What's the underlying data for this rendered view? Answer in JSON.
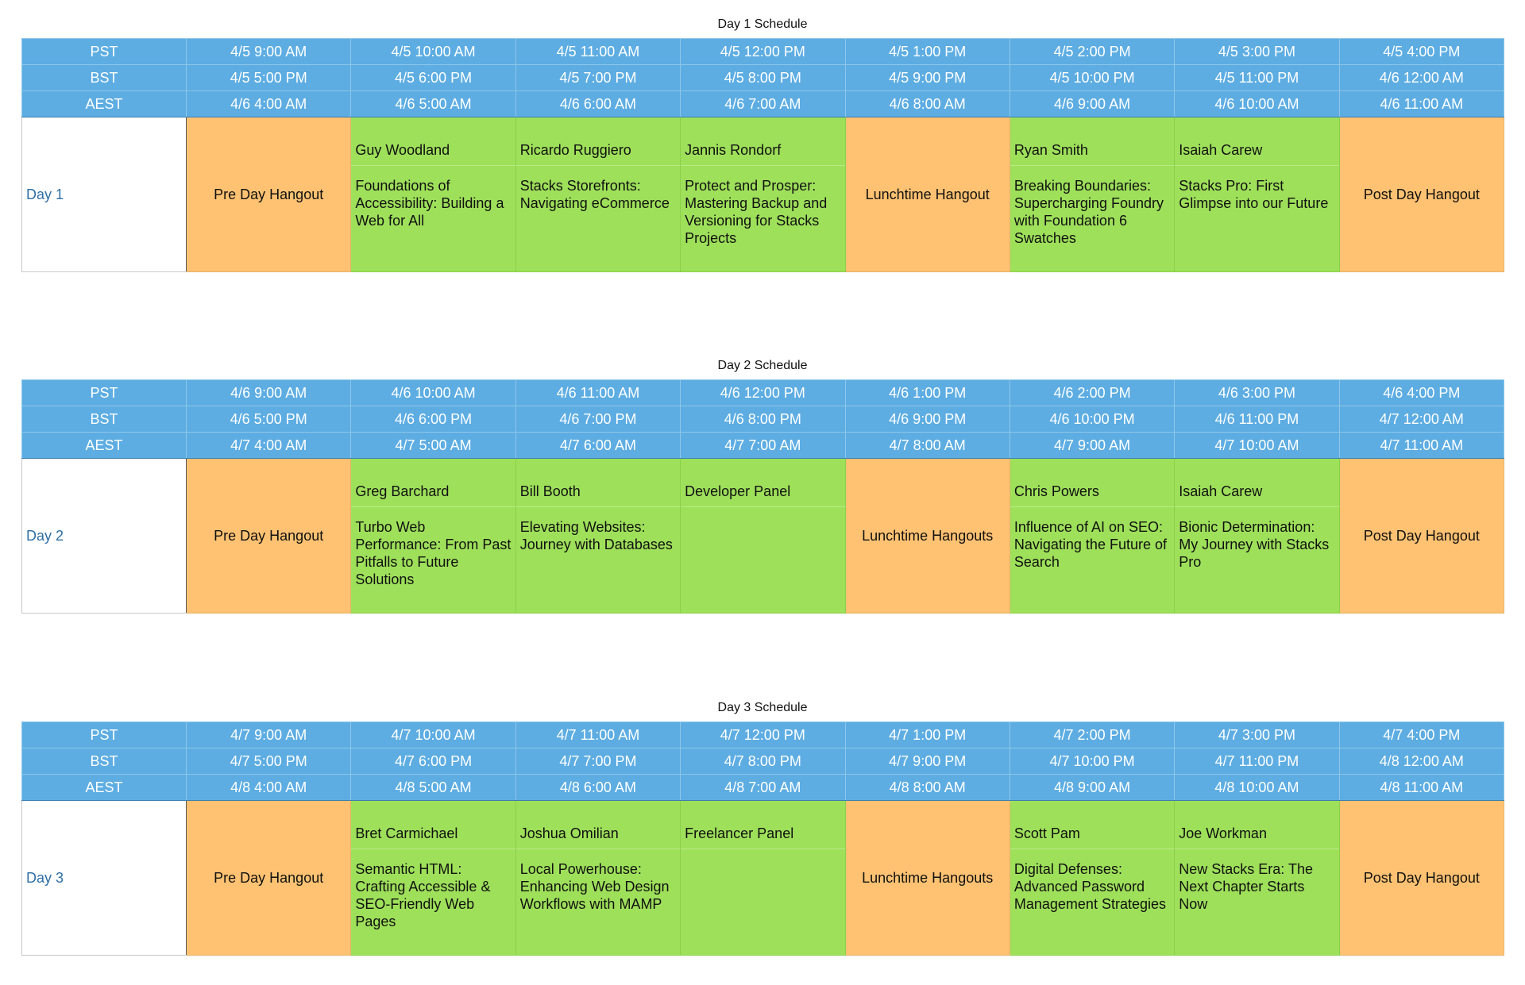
{
  "days": [
    {
      "title": "Day 1 Schedule",
      "timezones": [
        {
          "label": "PST",
          "times": [
            "4/5 9:00 AM",
            "4/5 10:00 AM",
            "4/5 11:00 AM",
            "4/5 12:00 PM",
            "4/5 1:00 PM",
            "4/5 2:00 PM",
            "4/5 3:00 PM",
            "4/5 4:00 PM"
          ]
        },
        {
          "label": "BST",
          "times": [
            "4/5 5:00 PM",
            "4/5 6:00 PM",
            "4/5 7:00 PM",
            "4/5 8:00 PM",
            "4/5 9:00 PM",
            "4/5 10:00 PM",
            "4/5 11:00 PM",
            "4/6 12:00 AM"
          ]
        },
        {
          "label": "AEST",
          "times": [
            "4/6 4:00 AM",
            "4/6 5:00 AM",
            "4/6 6:00 AM",
            "4/6 7:00 AM",
            "4/6 8:00 AM",
            "4/6 9:00 AM",
            "4/6 10:00 AM",
            "4/6 11:00 AM"
          ]
        }
      ],
      "day_label": "Day 1",
      "slots": [
        {
          "type": "hangout",
          "text": "Pre Day Hangout"
        },
        {
          "type": "talk",
          "speaker": "Guy Woodland",
          "session": "Foundations of Accessibility: Building a Web for All"
        },
        {
          "type": "talk",
          "speaker": "Ricardo Ruggiero",
          "session": "Stacks Storefronts: Navigating eCommerce"
        },
        {
          "type": "talk",
          "speaker": "Jannis Rondorf",
          "session": "Protect and Prosper: Mastering Backup and Versioning for Stacks Projects"
        },
        {
          "type": "hangout",
          "text": "Lunchtime Hangout"
        },
        {
          "type": "talk",
          "speaker": "Ryan Smith",
          "session": "Breaking Boundaries: Supercharging Foundry with Foundation 6 Swatches"
        },
        {
          "type": "talk",
          "speaker": "Isaiah Carew",
          "session": "Stacks Pro: First Glimpse into our Future"
        },
        {
          "type": "hangout",
          "text": "Post Day Hangout"
        }
      ]
    },
    {
      "title": "Day 2 Schedule",
      "timezones": [
        {
          "label": "PST",
          "times": [
            "4/6 9:00 AM",
            "4/6 10:00 AM",
            "4/6 11:00 AM",
            "4/6 12:00 PM",
            "4/6 1:00 PM",
            "4/6 2:00 PM",
            "4/6 3:00 PM",
            "4/6 4:00 PM"
          ]
        },
        {
          "label": "BST",
          "times": [
            "4/6 5:00 PM",
            "4/6 6:00 PM",
            "4/6 7:00 PM",
            "4/6 8:00 PM",
            "4/6 9:00 PM",
            "4/6 10:00 PM",
            "4/6 11:00 PM",
            "4/7 12:00 AM"
          ]
        },
        {
          "label": "AEST",
          "times": [
            "4/7 4:00 AM",
            "4/7 5:00 AM",
            "4/7 6:00 AM",
            "4/7 7:00 AM",
            "4/7 8:00 AM",
            "4/7 9:00 AM",
            "4/7 10:00 AM",
            "4/7 11:00 AM"
          ]
        }
      ],
      "day_label": "Day 2",
      "slots": [
        {
          "type": "hangout",
          "text": "Pre Day Hangout"
        },
        {
          "type": "talk",
          "speaker": "Greg Barchard",
          "session": "Turbo Web Performance: From Past Pitfalls to Future Solutions"
        },
        {
          "type": "talk",
          "speaker": "Bill Booth",
          "session": "Elevating Websites: Journey with Databases"
        },
        {
          "type": "talk",
          "speaker": "Developer Panel",
          "session": ""
        },
        {
          "type": "hangout",
          "text": "Lunchtime Hangouts"
        },
        {
          "type": "talk",
          "speaker": "Chris Powers",
          "session": "Influence of AI on SEO: Navigating the Future of Search"
        },
        {
          "type": "talk",
          "speaker": "Isaiah Carew",
          "session": "Bionic Determination: My Journey with Stacks Pro"
        },
        {
          "type": "hangout",
          "text": "Post Day Hangout"
        }
      ]
    },
    {
      "title": "Day 3 Schedule",
      "timezones": [
        {
          "label": "PST",
          "times": [
            "4/7 9:00 AM",
            "4/7 10:00 AM",
            "4/7 11:00 AM",
            "4/7 12:00 PM",
            "4/7 1:00 PM",
            "4/7 2:00 PM",
            "4/7 3:00 PM",
            "4/7 4:00 PM"
          ]
        },
        {
          "label": "BST",
          "times": [
            "4/7 5:00 PM",
            "4/7 6:00 PM",
            "4/7 7:00 PM",
            "4/7 8:00 PM",
            "4/7 9:00 PM",
            "4/7 10:00 PM",
            "4/7 11:00 PM",
            "4/8 12:00 AM"
          ]
        },
        {
          "label": "AEST",
          "times": [
            "4/8 4:00 AM",
            "4/8 5:00 AM",
            "4/8 6:00 AM",
            "4/8 7:00 AM",
            "4/8 8:00 AM",
            "4/8 9:00 AM",
            "4/8 10:00 AM",
            "4/8 11:00 AM"
          ]
        }
      ],
      "day_label": "Day 3",
      "slots": [
        {
          "type": "hangout",
          "text": "Pre Day Hangout"
        },
        {
          "type": "talk",
          "speaker": "Bret Carmichael",
          "session": "Semantic HTML: Crafting Accessible & SEO-Friendly Web Pages"
        },
        {
          "type": "talk",
          "speaker": "Joshua Omilian",
          "session": "Local Powerhouse: Enhancing Web Design Workflows with MAMP"
        },
        {
          "type": "talk",
          "speaker": "Freelancer Panel",
          "session": ""
        },
        {
          "type": "hangout",
          "text": "Lunchtime Hangouts"
        },
        {
          "type": "talk",
          "speaker": "Scott Pam",
          "session": "Digital Defenses: Advanced Password Management Strategies"
        },
        {
          "type": "talk",
          "speaker": "Joe Workman",
          "session": "New Stacks Era: The Next Chapter Starts Now"
        },
        {
          "type": "hangout",
          "text": "Post Day Hangout"
        }
      ]
    }
  ],
  "colors": {
    "header_blue": "#5dade2",
    "hangout_orange": "#ffc272",
    "talk_green": "#9ee05a",
    "day_label_blue": "#2f6fa3"
  }
}
